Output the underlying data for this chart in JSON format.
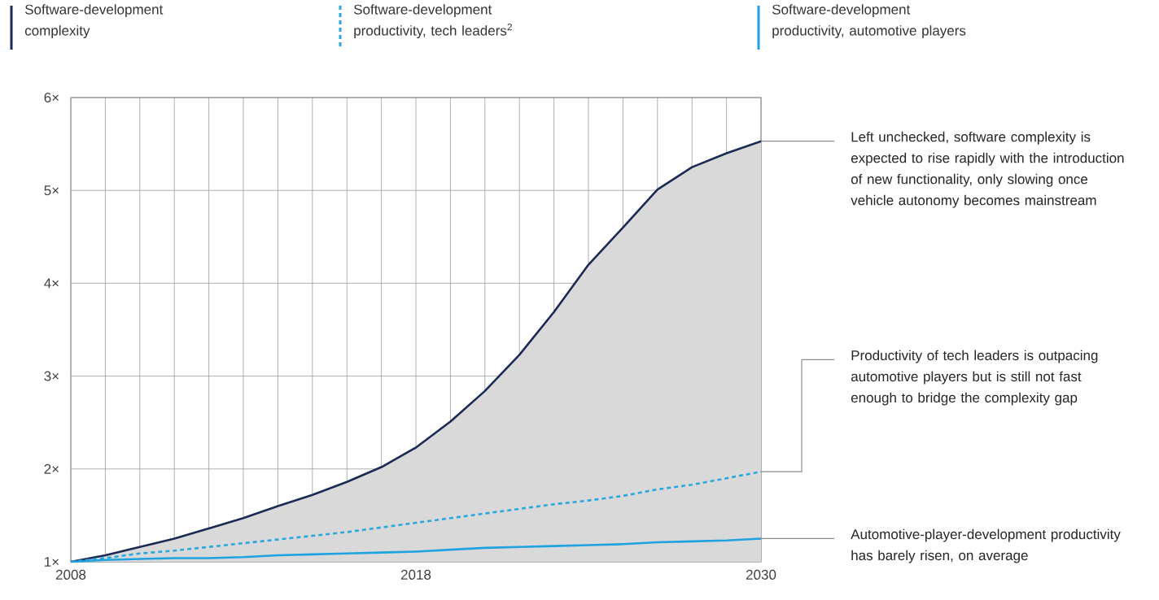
{
  "chart_data": {
    "type": "line",
    "categories": [
      "2008",
      null,
      null,
      null,
      null,
      null,
      null,
      null,
      null,
      null,
      "2018",
      null,
      null,
      null,
      null,
      null,
      null,
      null,
      null,
      null,
      "2030"
    ],
    "series": [
      {
        "name": "Software-development complexity",
        "type": "area",
        "color": "#1b2a55",
        "values": [
          1.0,
          1.07,
          1.16,
          1.25,
          1.36,
          1.47,
          1.6,
          1.72,
          1.86,
          2.02,
          2.23,
          2.51,
          2.84,
          3.23,
          3.69,
          4.2,
          4.6,
          5.01,
          5.25,
          5.4,
          5.53
        ]
      },
      {
        "name": "Software-development productivity, tech leaders$^{2}$",
        "color": "#29a8e0",
        "line_style": "dashed",
        "values": [
          1.0,
          1.04,
          1.09,
          1.12,
          1.16,
          1.2,
          1.24,
          1.28,
          1.32,
          1.37,
          1.42,
          1.47,
          1.52,
          1.57,
          1.62,
          1.66,
          1.71,
          1.78,
          1.83,
          1.9,
          1.97
        ]
      },
      {
        "name": "Software-development productivity, automotive players",
        "color": "#1fa3e0",
        "values": [
          1.0,
          1.02,
          1.03,
          1.04,
          1.04,
          1.05,
          1.07,
          1.08,
          1.09,
          1.1,
          1.11,
          1.13,
          1.15,
          1.16,
          1.17,
          1.18,
          1.19,
          1.21,
          1.22,
          1.23,
          1.25
        ]
      }
    ],
    "ylim": [
      1,
      6
    ],
    "yticks": [
      {
        "value": 1,
        "label": "1×"
      },
      {
        "value": 2,
        "label": "2×"
      },
      {
        "value": 3,
        "label": "3×"
      },
      {
        "value": 4,
        "label": "4×"
      },
      {
        "value": 5,
        "label": "5×"
      },
      {
        "value": 6,
        "label": "6×"
      }
    ],
    "grid": true,
    "legend": "top",
    "annotations": [
      {
        "text": "Left unchecked, software complexity is expected to rise rapidly with the introduction of new functionality, only slowing once vehicle autonomy becomes mainstream",
        "x": "2030",
        "y": 5.53
      },
      {
        "text": "Productivity of tech leaders is outpacing automotive players but is still not fast enough to bridge the complexity gap",
        "x": "2030",
        "y": 1.97
      },
      {
        "text": "Automotive-player-development productivity has barely risen, on average",
        "x": "2030",
        "y": 1.25
      }
    ]
  }
}
